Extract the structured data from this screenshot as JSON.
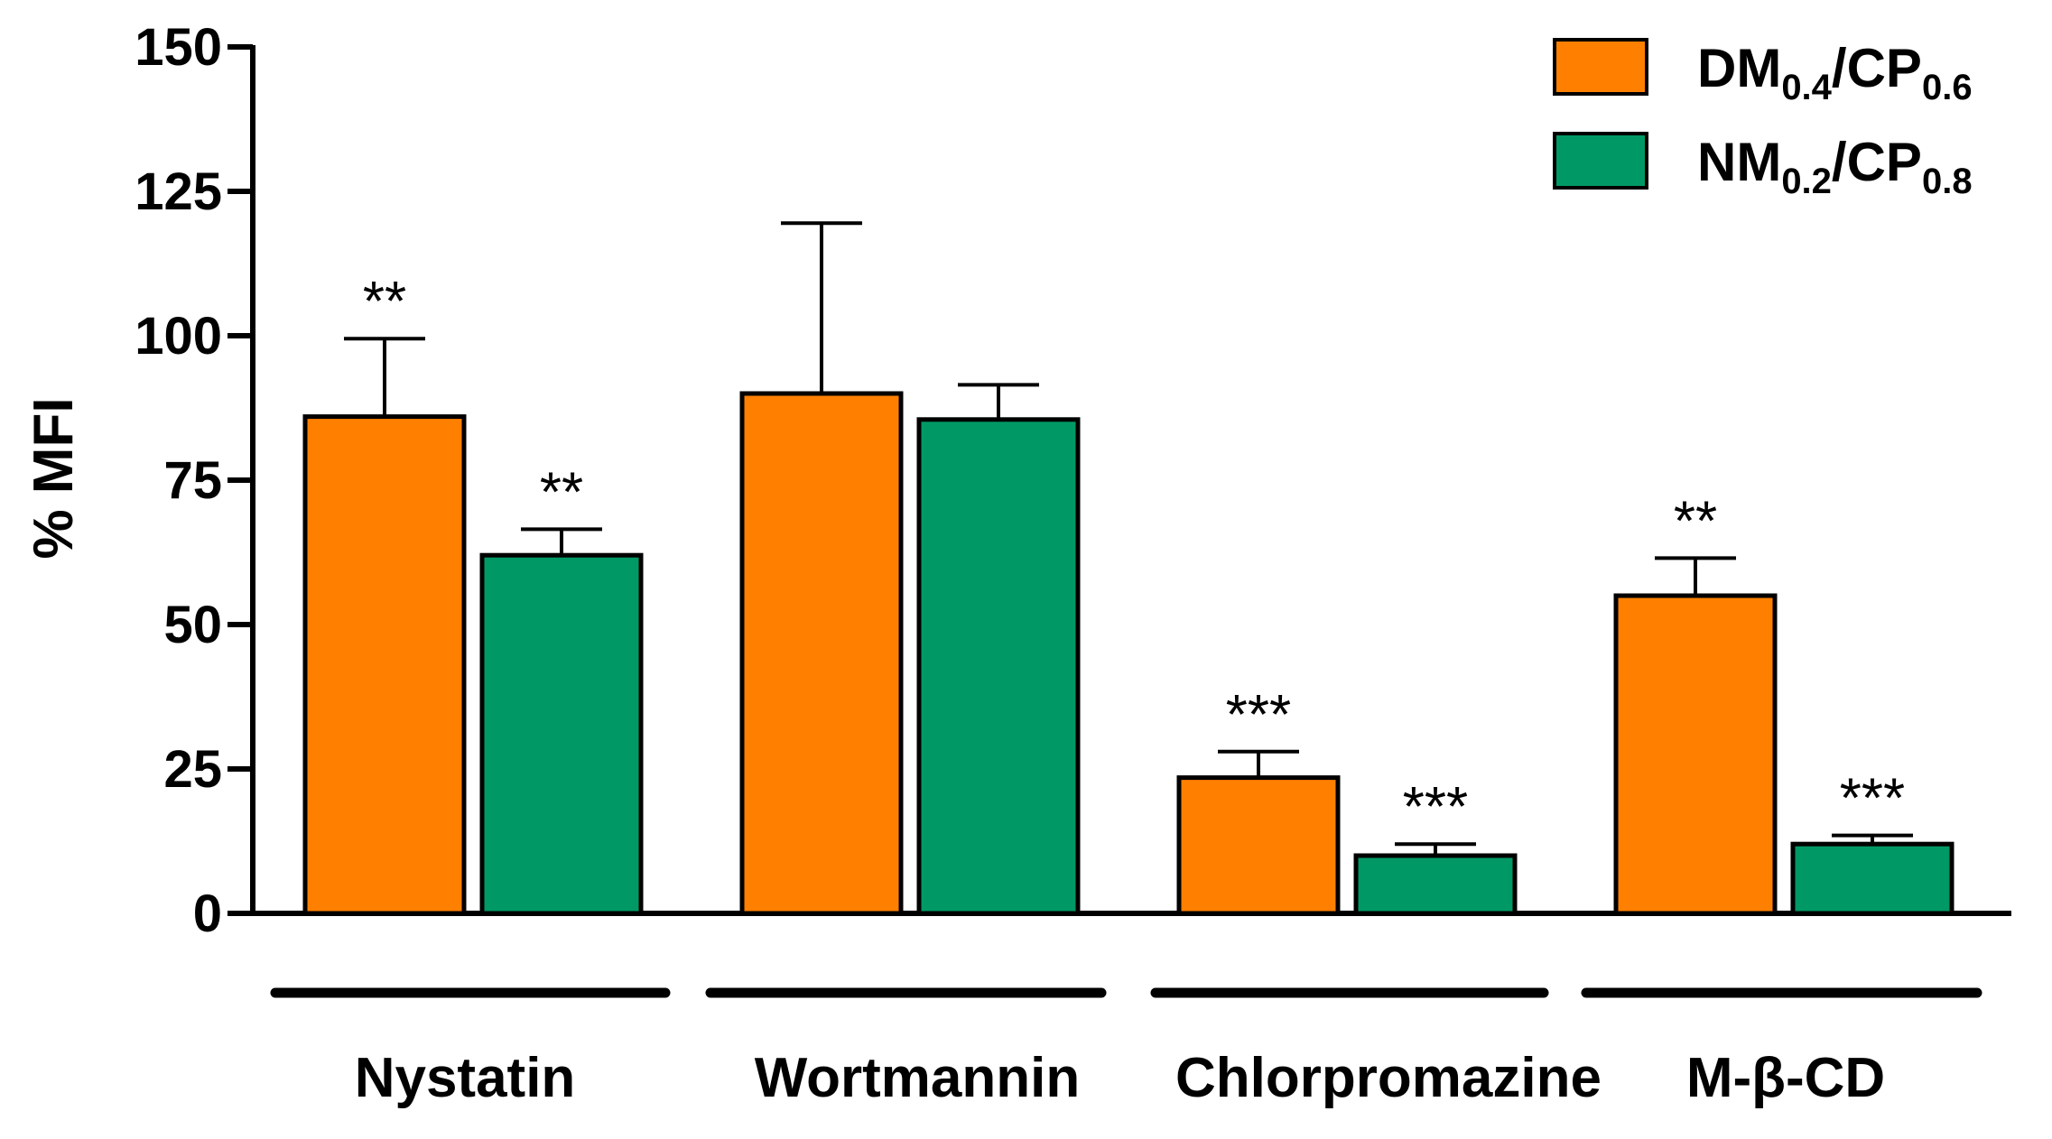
{
  "chart_data": {
    "type": "bar",
    "ylabel": "% MFI",
    "ylim": [
      0,
      150
    ],
    "yticks": [
      "0",
      "25",
      "50",
      "75",
      "100",
      "125",
      "150"
    ],
    "categories": [
      "Nystatin",
      "Wortmannin",
      "Chlorpromazine",
      "M-β-CD"
    ],
    "series": [
      {
        "name": "DM0.4/CP0.6",
        "legend_base1": "DM",
        "legend_sub1": "0.4",
        "legend_base2": "/CP",
        "legend_sub2": "0.6",
        "color": "#ff8000",
        "values": [
          86,
          90,
          23.5,
          55
        ],
        "errors": [
          13.5,
          29.5,
          4.5,
          6.5
        ],
        "significance": [
          "**",
          "",
          "***",
          "**"
        ]
      },
      {
        "name": "NM0.2/CP0.8",
        "legend_base1": "NM",
        "legend_sub1": "0.2",
        "legend_base2": "/CP",
        "legend_sub2": "0.8",
        "color": "#009966",
        "values": [
          62,
          85.5,
          10,
          12
        ],
        "errors": [
          4.5,
          6,
          2,
          1.5
        ],
        "significance": [
          "**",
          "",
          "***",
          "***"
        ]
      }
    ],
    "legend_position": "top-right",
    "grid": false
  }
}
